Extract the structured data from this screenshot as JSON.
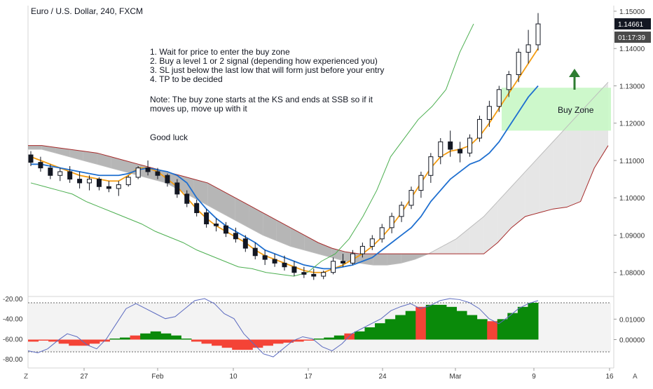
{
  "title": "Euro / U.S. Dollar, 240, FXCM",
  "notes": [
    "1. Wait for price to enter the buy zone",
    "2. Buy a level 1 or 2 signal (depending how experienced you)",
    "3. SL just below the last low that will form just before your entry",
    "4. TP to be decided",
    "",
    "Note: The buy zone starts at the KS and ends at  SSB so if it",
    "moves up, move up with it",
    "",
    "Good luck"
  ],
  "buy_zone_label": "Buy Zone",
  "price_badges": {
    "last_price": "1.14661",
    "countdown": "01:17:39"
  },
  "corner_labels": {
    "left": "Z",
    "right": "A"
  },
  "colors": {
    "up": "#ffffff",
    "down": "#131722",
    "tenkan": "#f39c12",
    "kijun": "#1e6fd0",
    "chikou": "#4caf50",
    "span_b": "#a52a2a",
    "cloud_bear": "#9e9e9e",
    "cloud_bull": "#e0e0e0",
    "buy_zone": "#c8f7c5",
    "arrow": "#2e7d32",
    "hist_up": "#0a8a0a",
    "hist_down": "#f44336",
    "osc_line": "#5c6bc0",
    "badge_dark": "#131722",
    "badge_grey": "#4a4a4a"
  },
  "chart_data": [
    {
      "type": "candlestick",
      "title": "Euro / U.S. Dollar, 240, FXCM",
      "y_axis_ticks": [
        "1.15000",
        "1.14000",
        "1.13000",
        "1.12000",
        "1.11000",
        "1.10000",
        "1.09000",
        "1.08000"
      ],
      "ylim": [
        1.0745,
        1.1515
      ],
      "x_ticks": [
        "27",
        "Feb",
        "10",
        "17",
        "24",
        "Mar",
        "9",
        "16"
      ],
      "candles": [
        [
          1.1115,
          1.1125,
          1.1085,
          1.1095
        ],
        [
          1.1095,
          1.111,
          1.107,
          1.108
        ],
        [
          1.108,
          1.109,
          1.105,
          1.106
        ],
        [
          1.106,
          1.108,
          1.1045,
          1.107
        ],
        [
          1.107,
          1.1085,
          1.104,
          1.105
        ],
        [
          1.105,
          1.107,
          1.1025,
          1.104
        ],
        [
          1.104,
          1.106,
          1.102,
          1.105
        ],
        [
          1.105,
          1.1055,
          1.102,
          1.103
        ],
        [
          1.103,
          1.1045,
          1.1015,
          1.1025
        ],
        [
          1.1025,
          1.1045,
          1.1005,
          1.1035
        ],
        [
          1.1035,
          1.106,
          1.103,
          1.1055
        ],
        [
          1.1055,
          1.1085,
          1.105,
          1.108
        ],
        [
          1.108,
          1.11,
          1.106,
          1.107
        ],
        [
          1.107,
          1.108,
          1.105,
          1.106
        ],
        [
          1.106,
          1.1065,
          1.103,
          1.104
        ],
        [
          1.104,
          1.105,
          1.1,
          1.101
        ],
        [
          1.101,
          1.102,
          1.0975,
          1.0985
        ],
        [
          1.0985,
          1.0995,
          1.095,
          1.096
        ],
        [
          1.096,
          1.097,
          1.092,
          1.093
        ],
        [
          1.093,
          1.0945,
          1.091,
          1.0925
        ],
        [
          1.0925,
          1.0935,
          1.0895,
          1.0905
        ],
        [
          1.0905,
          1.092,
          1.088,
          1.089
        ],
        [
          1.089,
          1.09,
          1.0855,
          1.0865
        ],
        [
          1.0865,
          1.088,
          1.0835,
          1.0845
        ],
        [
          1.0845,
          1.086,
          1.082,
          1.0835
        ],
        [
          1.0835,
          1.085,
          1.0815,
          1.0825
        ],
        [
          1.0825,
          1.0845,
          1.0805,
          1.0815
        ],
        [
          1.0815,
          1.083,
          1.079,
          1.08
        ],
        [
          1.08,
          1.0815,
          1.0785,
          1.0795
        ],
        [
          1.0795,
          1.081,
          1.078,
          1.079
        ],
        [
          1.079,
          1.0805,
          1.0782,
          1.08
        ],
        [
          1.08,
          1.084,
          1.0795,
          1.083
        ],
        [
          1.083,
          1.085,
          1.0815,
          1.0825
        ],
        [
          1.0825,
          1.086,
          1.082,
          1.085
        ],
        [
          1.085,
          1.088,
          1.084,
          1.087
        ],
        [
          1.087,
          1.09,
          1.086,
          1.089
        ],
        [
          1.089,
          1.093,
          1.088,
          1.092
        ],
        [
          1.092,
          1.096,
          1.0905,
          1.095
        ],
        [
          1.095,
          1.099,
          1.0935,
          1.098
        ],
        [
          1.098,
          1.103,
          1.097,
          1.102
        ],
        [
          1.102,
          1.107,
          1.1,
          1.106
        ],
        [
          1.106,
          1.112,
          1.104,
          1.111
        ],
        [
          1.111,
          1.116,
          1.109,
          1.115
        ],
        [
          1.115,
          1.118,
          1.111,
          1.113
        ],
        [
          1.113,
          1.115,
          1.1095,
          1.112
        ],
        [
          1.112,
          1.117,
          1.111,
          1.116
        ],
        [
          1.116,
          1.122,
          1.115,
          1.121
        ],
        [
          1.121,
          1.126,
          1.119,
          1.1245
        ],
        [
          1.1245,
          1.13,
          1.123,
          1.129
        ],
        [
          1.129,
          1.134,
          1.127,
          1.133
        ],
        [
          1.133,
          1.14,
          1.131,
          1.139
        ],
        [
          1.139,
          1.145,
          1.136,
          1.141
        ],
        [
          1.141,
          1.1495,
          1.1395,
          1.1466
        ]
      ],
      "lines": {
        "tenkan": [
          1.111,
          1.11,
          1.109,
          1.108,
          1.107,
          1.106,
          1.1055,
          1.105,
          1.1045,
          1.1045,
          1.106,
          1.108,
          1.108,
          1.107,
          1.105,
          1.103,
          1.1,
          1.097,
          1.0945,
          1.0925,
          1.091,
          1.0895,
          1.088,
          1.086,
          1.0845,
          1.0835,
          1.0825,
          1.0815,
          1.0805,
          1.08,
          1.08,
          1.081,
          1.082,
          1.0835,
          1.085,
          1.087,
          1.0895,
          1.0925,
          1.096,
          1.1,
          1.104,
          1.108,
          1.111,
          1.1125,
          1.113,
          1.114,
          1.1165,
          1.12,
          1.124,
          1.128,
          1.132,
          1.136,
          1.14
        ],
        "kijun": [
          1.109,
          1.109,
          1.1085,
          1.108,
          1.1075,
          1.107,
          1.1065,
          1.106,
          1.106,
          1.106,
          1.1065,
          1.1075,
          1.108,
          1.1075,
          1.107,
          1.106,
          1.104,
          1.1,
          1.097,
          1.0945,
          1.0925,
          1.091,
          1.0895,
          1.088,
          1.086,
          1.085,
          1.084,
          1.083,
          1.082,
          1.0815,
          1.081,
          1.081,
          1.0815,
          1.082,
          1.083,
          1.084,
          1.086,
          1.088,
          1.09,
          1.092,
          1.095,
          1.099,
          1.102,
          1.105,
          1.107,
          1.109,
          1.11,
          1.112,
          1.115,
          1.119,
          1.123,
          1.127,
          1.13
        ],
        "chikou": [
          1.104,
          1.103,
          1.102,
          1.101,
          1.099,
          1.0975,
          1.096,
          1.0945,
          1.093,
          1.091,
          1.0895,
          1.088,
          1.086,
          1.0845,
          1.083,
          1.0815,
          1.081,
          1.08,
          1.0795,
          1.079,
          1.08,
          1.083,
          1.085,
          1.089,
          1.095,
          1.102,
          1.111,
          1.116,
          1.121,
          1.1245,
          1.129,
          1.139,
          1.1466
        ],
        "span_a": [
          1.113,
          1.113,
          1.112,
          1.111,
          1.11,
          1.109,
          1.108,
          1.107,
          1.106,
          1.105,
          1.104,
          1.102,
          1.1,
          1.098,
          1.096,
          1.094,
          1.092,
          1.09,
          1.0885,
          1.087,
          1.086,
          1.085,
          1.084,
          1.083,
          1.0825,
          1.082,
          1.082,
          1.0825,
          1.0835,
          1.085,
          1.087,
          1.089,
          1.092,
          1.095,
          1.099,
          1.103,
          1.107,
          1.111,
          1.115,
          1.119,
          1.123,
          1.127,
          1.131
        ],
        "span_b": [
          1.114,
          1.114,
          1.1135,
          1.113,
          1.1125,
          1.112,
          1.111,
          1.11,
          1.109,
          1.108,
          1.107,
          1.106,
          1.105,
          1.104,
          1.102,
          1.1,
          1.098,
          1.096,
          1.094,
          1.092,
          1.09,
          1.088,
          1.0865,
          1.0855,
          1.085,
          1.085,
          1.085,
          1.085,
          1.085,
          1.085,
          1.085,
          1.085,
          1.085,
          1.085,
          1.088,
          1.092,
          1.095,
          1.096,
          1.097,
          1.0975,
          1.099,
          1.108,
          1.114
        ]
      },
      "buy_zone": {
        "from": 1.118,
        "to": 1.1295,
        "label": "Buy Zone"
      }
    },
    {
      "type": "histogram",
      "y_axis_ticks_left": [
        "-20.00",
        "-40.00",
        "-60.00",
        "-80.00"
      ],
      "y_axis_ticks_right": [
        "0.01000",
        "0.00000"
      ],
      "ylim": [
        -0.006,
        0.018
      ],
      "histogram": [
        -0.001,
        -0.0005,
        -0.001,
        -0.002,
        -0.003,
        -0.003,
        -0.002,
        -0.001,
        0.0005,
        0.001,
        0.002,
        0.003,
        0.004,
        0.003,
        0.002,
        0.0005,
        -0.001,
        -0.002,
        -0.003,
        -0.004,
        -0.005,
        -0.005,
        -0.004,
        -0.003,
        -0.002,
        -0.0015,
        -0.001,
        -0.0005,
        0.0005,
        0.001,
        0.002,
        0.003,
        0.004,
        0.006,
        0.008,
        0.01,
        0.012,
        0.014,
        0.016,
        0.017,
        0.017,
        0.016,
        0.014,
        0.012,
        0.01,
        0.009,
        0.01,
        0.013,
        0.016,
        0.018
      ],
      "oscillator": [
        -72,
        -74,
        -70,
        -62,
        -55,
        -58,
        -66,
        -70,
        -60,
        -45,
        -30,
        -25,
        -30,
        -35,
        -40,
        -38,
        -30,
        -22,
        -20,
        -25,
        -35,
        -40,
        -55,
        -65,
        -75,
        -78,
        -70,
        -62,
        -58,
        -60,
        -68,
        -72,
        -65,
        -55,
        -50,
        -45,
        -40,
        -32,
        -28,
        -25,
        -30,
        -27,
        -22,
        -20,
        -21,
        -24,
        -30,
        -40,
        -45,
        -38,
        -30,
        -25,
        -22
      ]
    }
  ]
}
